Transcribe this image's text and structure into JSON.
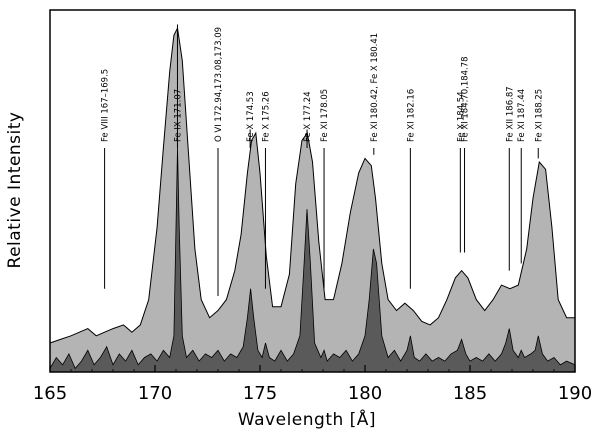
{
  "chart_data": {
    "type": "area",
    "xlabel": "Wavelength [Å]",
    "ylabel": "Relative Intensity",
    "xlim": [
      165,
      190
    ],
    "ylim": [
      0,
      1
    ],
    "xticks": [
      165,
      170,
      175,
      180,
      185,
      190
    ],
    "xtick_labels": [
      "165",
      "170",
      "175",
      "180",
      "185",
      "190"
    ],
    "grid": false,
    "colors": {
      "broad_fill": "#b4b4b4",
      "narrow_fill": "#5a5a5a",
      "outline": "#000000"
    },
    "series": [
      {
        "x": [
          165.0,
          165.5,
          166.0,
          166.4,
          166.8,
          167.2,
          167.6,
          168.0,
          168.5,
          168.9,
          169.3,
          169.7,
          170.1,
          170.4,
          170.7,
          170.9,
          171.07,
          171.3,
          171.6,
          171.9,
          172.2,
          172.6,
          173.0,
          173.4,
          173.8,
          174.1,
          174.4,
          174.6,
          174.8,
          175.0,
          175.3,
          175.6,
          176.0,
          176.4,
          176.7,
          177.0,
          177.25,
          177.5,
          177.8,
          178.1,
          178.5,
          178.9,
          179.3,
          179.7,
          180.0,
          180.3,
          180.5,
          180.8,
          181.1,
          181.5,
          181.9,
          182.3,
          182.7,
          183.1,
          183.5,
          183.9,
          184.3,
          184.6,
          184.9,
          185.3,
          185.7,
          186.1,
          186.5,
          186.9,
          187.3,
          187.7,
          188.0,
          188.3,
          188.6,
          188.9,
          189.2,
          189.6,
          190.0
        ],
        "y": [
          0.08,
          0.09,
          0.1,
          0.11,
          0.12,
          0.1,
          0.11,
          0.12,
          0.13,
          0.11,
          0.13,
          0.2,
          0.4,
          0.62,
          0.83,
          0.93,
          0.95,
          0.86,
          0.6,
          0.34,
          0.2,
          0.15,
          0.17,
          0.2,
          0.28,
          0.38,
          0.55,
          0.64,
          0.66,
          0.55,
          0.32,
          0.18,
          0.18,
          0.27,
          0.52,
          0.64,
          0.66,
          0.58,
          0.36,
          0.2,
          0.2,
          0.3,
          0.44,
          0.55,
          0.59,
          0.57,
          0.48,
          0.3,
          0.2,
          0.17,
          0.19,
          0.17,
          0.14,
          0.13,
          0.15,
          0.2,
          0.26,
          0.28,
          0.26,
          0.2,
          0.17,
          0.2,
          0.24,
          0.23,
          0.24,
          0.34,
          0.48,
          0.58,
          0.56,
          0.4,
          0.2,
          0.15,
          0.15
        ]
      },
      {
        "x": [
          165.0,
          165.3,
          165.6,
          165.9,
          166.2,
          166.5,
          166.8,
          167.1,
          167.4,
          167.7,
          168.0,
          168.3,
          168.6,
          168.9,
          169.2,
          169.5,
          169.8,
          170.1,
          170.4,
          170.7,
          170.9,
          171.0,
          171.07,
          171.15,
          171.3,
          171.5,
          171.8,
          172.1,
          172.4,
          172.7,
          173.0,
          173.3,
          173.6,
          173.9,
          174.2,
          174.4,
          174.55,
          174.7,
          174.9,
          175.1,
          175.26,
          175.45,
          175.7,
          176.0,
          176.3,
          176.6,
          176.9,
          177.1,
          177.24,
          177.4,
          177.6,
          177.9,
          178.05,
          178.2,
          178.5,
          178.8,
          179.1,
          179.4,
          179.7,
          180.0,
          180.2,
          180.4,
          180.55,
          180.8,
          181.1,
          181.4,
          181.7,
          182.0,
          182.16,
          182.35,
          182.6,
          182.9,
          183.2,
          183.5,
          183.8,
          184.1,
          184.4,
          184.6,
          184.8,
          185.0,
          185.3,
          185.6,
          185.9,
          186.2,
          186.5,
          186.7,
          186.87,
          187.05,
          187.3,
          187.44,
          187.6,
          187.9,
          188.1,
          188.25,
          188.45,
          188.7,
          189.0,
          189.3,
          189.6,
          190.0
        ],
        "y": [
          0.01,
          0.04,
          0.02,
          0.05,
          0.01,
          0.03,
          0.06,
          0.02,
          0.04,
          0.07,
          0.02,
          0.05,
          0.03,
          0.06,
          0.02,
          0.04,
          0.05,
          0.03,
          0.06,
          0.04,
          0.1,
          0.4,
          0.62,
          0.4,
          0.1,
          0.04,
          0.06,
          0.03,
          0.05,
          0.04,
          0.06,
          0.03,
          0.05,
          0.04,
          0.07,
          0.15,
          0.23,
          0.15,
          0.06,
          0.04,
          0.08,
          0.04,
          0.03,
          0.06,
          0.03,
          0.05,
          0.1,
          0.3,
          0.45,
          0.3,
          0.08,
          0.04,
          0.06,
          0.03,
          0.05,
          0.04,
          0.06,
          0.03,
          0.05,
          0.1,
          0.2,
          0.34,
          0.3,
          0.1,
          0.04,
          0.06,
          0.03,
          0.06,
          0.1,
          0.04,
          0.03,
          0.05,
          0.03,
          0.04,
          0.03,
          0.05,
          0.06,
          0.09,
          0.05,
          0.03,
          0.04,
          0.03,
          0.05,
          0.03,
          0.05,
          0.08,
          0.12,
          0.06,
          0.04,
          0.06,
          0.04,
          0.05,
          0.06,
          0.1,
          0.05,
          0.03,
          0.04,
          0.02,
          0.03,
          0.02
        ]
      }
    ],
    "annotations": [
      {
        "text": "Fe VIII 167–169.5",
        "x": 167.6,
        "y": 0.23
      },
      {
        "text": "Fe IX 171.07",
        "x": 171.07,
        "y": 0.96
      },
      {
        "text": "O VI 172.94,173.08,173.09",
        "x": 173.0,
        "y": 0.21
      },
      {
        "text": "Fe X 174.53",
        "x": 174.53,
        "y": 0.67
      },
      {
        "text": "Fe X 175.26",
        "x": 175.26,
        "y": 0.23
      },
      {
        "text": "Fe X 177.24",
        "x": 177.24,
        "y": 0.67
      },
      {
        "text": "Fe XI 178.05",
        "x": 178.05,
        "y": 0.23
      },
      {
        "text": "Fe XI 180.42, Fe X 180.41",
        "x": 180.42,
        "y": 0.6
      },
      {
        "text": "Fe XI 182.16",
        "x": 182.16,
        "y": 0.23
      },
      {
        "text": "Fe X 184.54",
        "x": 184.54,
        "y": 0.33
      },
      {
        "text": "Fe XI 184.70,184.78",
        "x": 184.74,
        "y": 0.33
      },
      {
        "text": "Fe XII 186.87",
        "x": 186.87,
        "y": 0.28
      },
      {
        "text": "Fe XI 187.44",
        "x": 187.44,
        "y": 0.3
      },
      {
        "text": "Fe XI 188.25",
        "x": 188.25,
        "y": 0.59
      }
    ]
  }
}
